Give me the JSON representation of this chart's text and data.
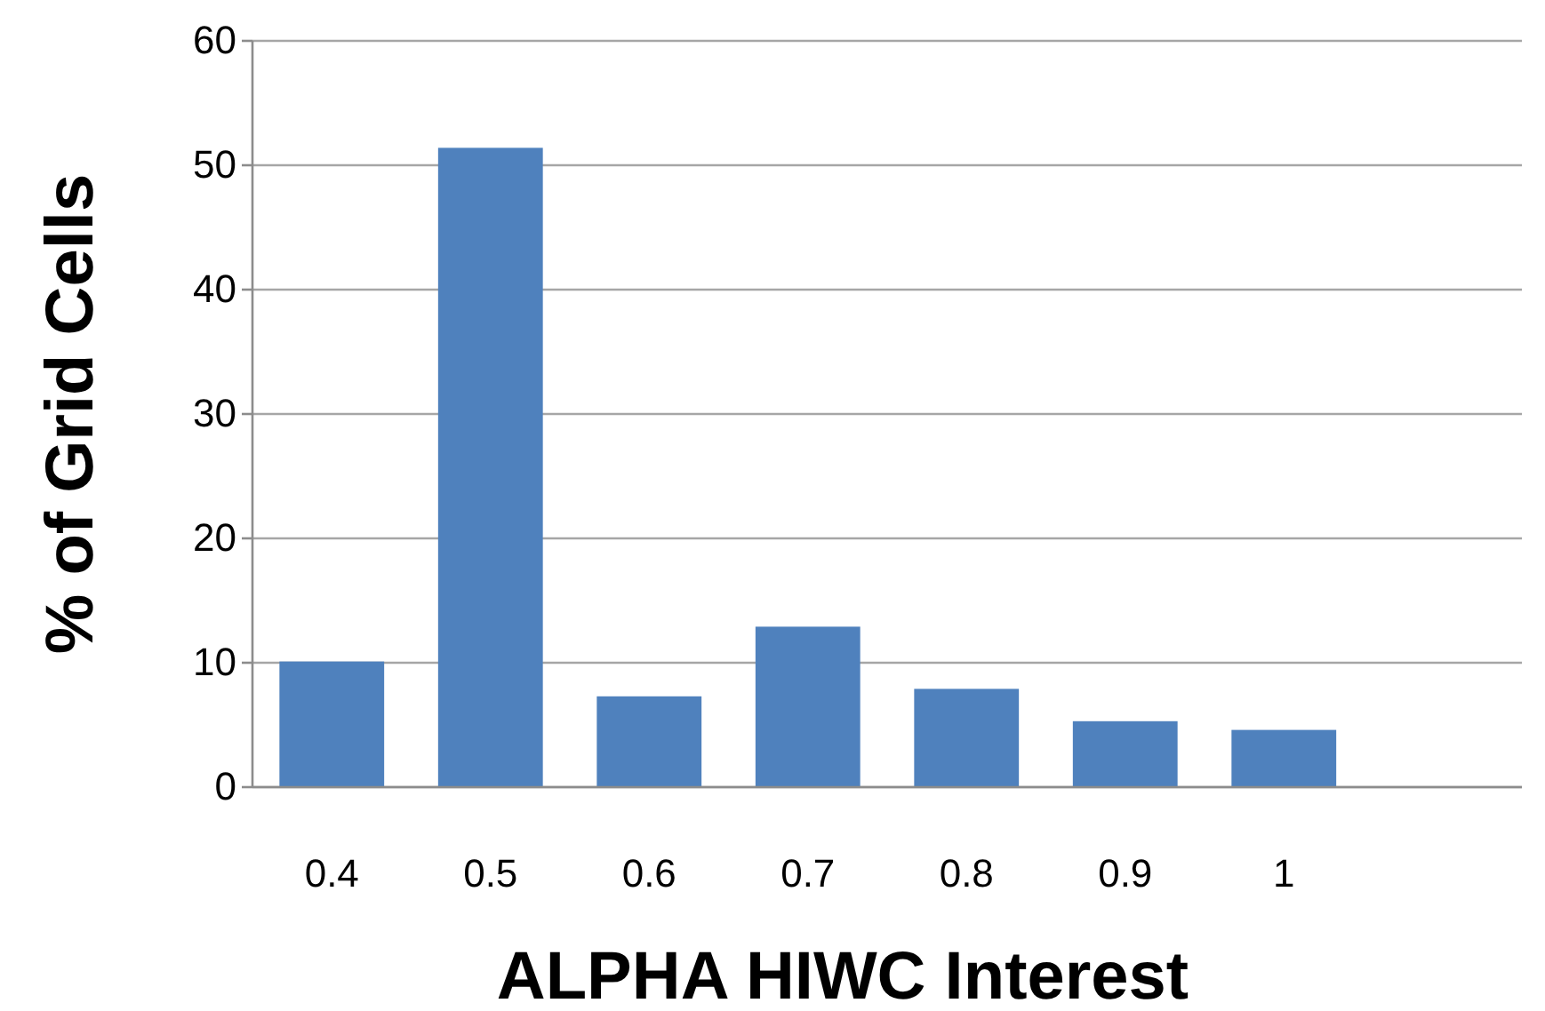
{
  "chart_data": {
    "type": "bar",
    "xlabel": "ALPHA HIWC Interest",
    "ylabel": "% of Grid Cells",
    "categories": [
      "0.4",
      "0.5",
      "0.6",
      "0.7",
      "0.8",
      "0.9",
      "1",
      null
    ],
    "values": [
      10.1,
      51.4,
      7.3,
      12.9,
      7.9,
      5.3,
      4.6,
      null
    ],
    "color": "#4f81bd",
    "ylim": [
      0,
      60
    ],
    "yticks": [
      0,
      10,
      20,
      30,
      40,
      50,
      60
    ],
    "grid": "y"
  }
}
